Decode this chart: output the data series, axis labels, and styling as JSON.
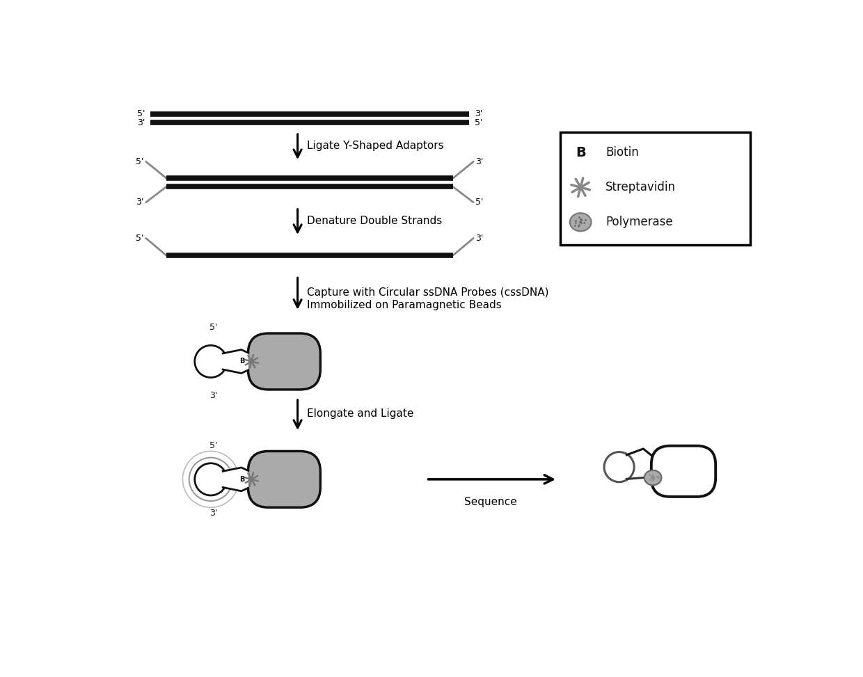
{
  "bg_color": "#ffffff",
  "dark": "#111111",
  "gray": "#888888",
  "med_gray": "#aaaaaa",
  "light_gray": "#cccccc",
  "lw_dna": 5.5,
  "lw_adaptor": 2.0,
  "step1_text": "Ligate Y-Shaped Adaptors",
  "step2_text": "Denature Double Strands",
  "step3_text": "Capture with Circular ssDNA Probes (cssDNA)\nImmobilized on Paramagnetic Beads",
  "step4_text": "Elongate and Ligate",
  "step5_text": "Sequence",
  "legend_b": "B",
  "legend_biotin": "Biotin",
  "legend_streptavidin": "Streptavidin",
  "legend_polymerase": "Polymerase",
  "fig_width": 12.4,
  "fig_height": 9.73,
  "dpi": 100,
  "xlim": [
    0,
    12.4
  ],
  "ylim": [
    0,
    9.73
  ]
}
